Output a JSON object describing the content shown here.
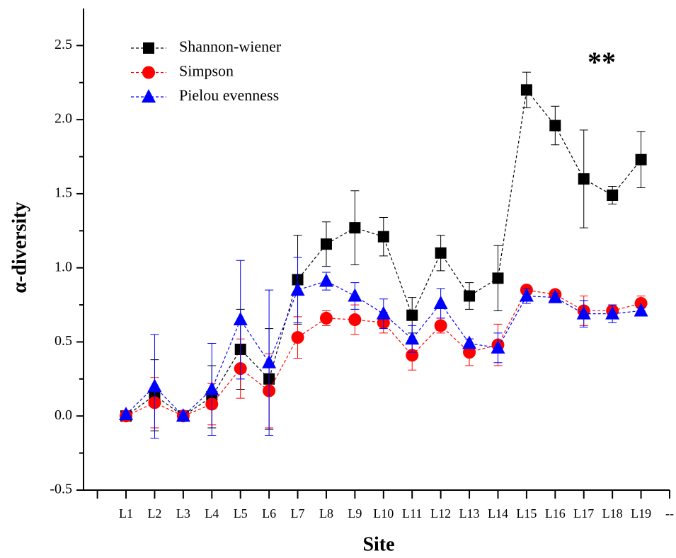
{
  "chart_data": {
    "type": "line",
    "xlabel": "Site",
    "ylabel": "α-diversity",
    "annotation": "**",
    "categories": [
      null,
      "L1",
      "L2",
      "L3",
      "L4",
      "L5",
      "L6",
      "L7",
      "L8",
      "L9",
      "L10",
      "L11",
      "L12",
      "L13",
      "L14",
      "L15",
      "L16",
      "L17",
      "L18",
      "L19",
      "--"
    ],
    "series": [
      {
        "name": "Shannon-wiener",
        "color": "#000000",
        "marker": "square",
        "values": [
          null,
          0.0,
          0.14,
          0.0,
          0.13,
          0.45,
          0.25,
          0.92,
          1.16,
          1.27,
          1.21,
          0.68,
          1.1,
          0.81,
          0.93,
          2.2,
          1.96,
          1.6,
          1.49,
          1.73,
          null
        ],
        "errors": [
          null,
          0.01,
          0.24,
          0.01,
          0.21,
          0.27,
          0.34,
          0.3,
          0.15,
          0.25,
          0.13,
          0.12,
          0.12,
          0.09,
          0.22,
          0.12,
          0.13,
          0.33,
          0.06,
          0.19,
          null
        ]
      },
      {
        "name": "Simpson",
        "color": "#ff0000",
        "marker": "circle",
        "values": [
          null,
          0.0,
          0.09,
          0.0,
          0.08,
          0.32,
          0.17,
          0.53,
          0.66,
          0.65,
          0.63,
          0.41,
          0.61,
          0.43,
          0.48,
          0.85,
          0.82,
          0.71,
          0.71,
          0.76,
          null
        ],
        "errors": [
          null,
          0.01,
          0.17,
          0.01,
          0.14,
          0.2,
          0.25,
          0.14,
          0.05,
          0.1,
          0.07,
          0.1,
          0.05,
          0.09,
          0.14,
          0.02,
          0.02,
          0.1,
          0.04,
          0.05,
          null
        ]
      },
      {
        "name": "Pielou evenness",
        "color": "#0000ff",
        "marker": "triangle",
        "values": [
          null,
          0.01,
          0.2,
          0.0,
          0.18,
          0.65,
          0.36,
          0.85,
          0.91,
          0.81,
          0.69,
          0.52,
          0.76,
          0.49,
          0.46,
          0.81,
          0.8,
          0.69,
          0.69,
          0.71,
          null
        ],
        "errors": [
          null,
          0.01,
          0.35,
          0.01,
          0.31,
          0.4,
          0.49,
          0.22,
          0.06,
          0.09,
          0.1,
          0.09,
          0.1,
          0.03,
          0.1,
          0.05,
          0.03,
          0.09,
          0.06,
          0.02,
          null
        ]
      }
    ],
    "ylim": [
      -0.5,
      2.75
    ],
    "yticks": [
      -0.5,
      {
        "value": 0,
        "label": "0.0"
      },
      {
        "value": 0.5,
        "label": "0.5"
      },
      {
        "value": 1,
        "label": "1.0"
      },
      1.5,
      {
        "value": 2,
        "label": "2.0"
      },
      2.5
    ],
    "legend": "upper left"
  }
}
